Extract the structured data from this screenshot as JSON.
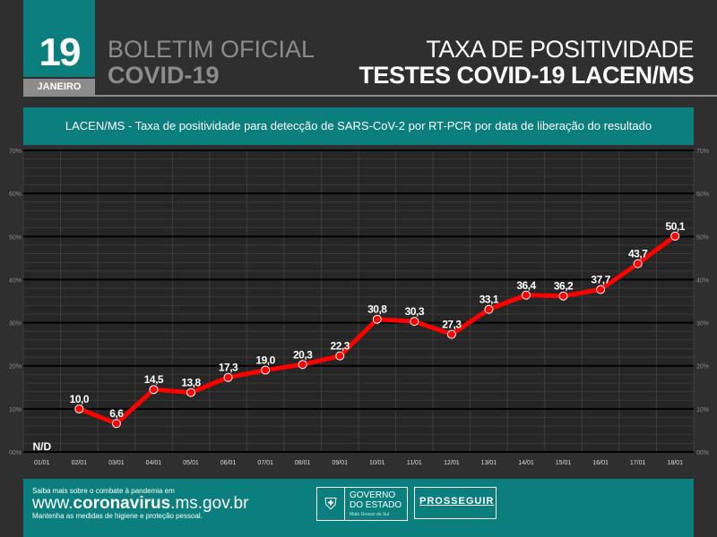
{
  "header": {
    "day": "19",
    "month": "JANEIRO",
    "bulletin_line1": "BOLETIM OFICIAL",
    "bulletin_line2": "COVID-19",
    "title_line1": "TAXA DE POSITIVIDADE",
    "title_line2": "TESTES COVID-19 LACEN/MS"
  },
  "subtitle": "LACEN/MS - Taxa de positividade para detecção de SARS-CoV-2 por RT-PCR por data de liberação do resultado",
  "chart_data": {
    "type": "line",
    "title": "LACEN/MS - Taxa de positividade para detecção de SARS-CoV-2 por RT-PCR por data de liberação do resultado",
    "categories": [
      "01/01",
      "02/01",
      "03/01",
      "04/01",
      "05/01",
      "06/01",
      "07/01",
      "08/01",
      "09/01",
      "10/01",
      "11/01",
      "12/01",
      "13/01",
      "14/01",
      "15/01",
      "16/01",
      "17/01",
      "18/01"
    ],
    "values": [
      null,
      10.0,
      6.6,
      14.5,
      13.8,
      17.3,
      19.0,
      20.3,
      22.3,
      30.8,
      30.3,
      27.3,
      33.1,
      36.4,
      36.2,
      37.7,
      43.7,
      50.1
    ],
    "labels": [
      "N/D",
      "10,0",
      "6,6",
      "14,5",
      "13,8",
      "17,3",
      "19,0",
      "20,3",
      "22,3",
      "30,8",
      "30,3",
      "27,3",
      "33,1",
      "36,4",
      "36,2",
      "37,7",
      "43,7",
      "50,1"
    ],
    "yticks": [
      "00%",
      "10%",
      "20%",
      "30%",
      "40%",
      "50%",
      "60%",
      "70%"
    ],
    "ylim": [
      0,
      70
    ],
    "grid": true,
    "line_color": "#ff0000"
  },
  "footer": {
    "line1": "Saiba mais sobre o combate à pandemia em",
    "url_prefix": "www.",
    "url_bold": "coronavirus",
    "url_suffix": ".ms.gov.br",
    "line3": "Mantenha as medidas de higiene e proteção pessoal.",
    "gov1": "GOVERNO",
    "gov2": "DO ESTADO",
    "gov3": "Mato Grosso do Sul",
    "prosseguir": "PROSSEGUIR"
  }
}
